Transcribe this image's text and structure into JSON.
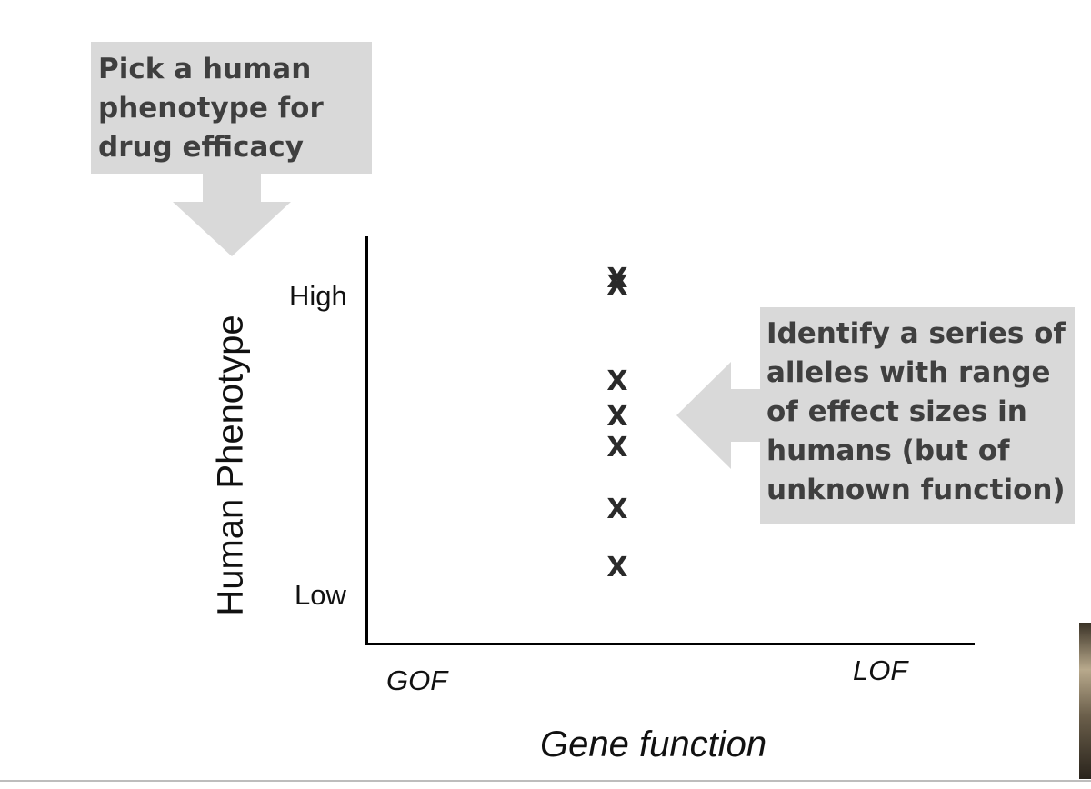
{
  "callouts": {
    "top_lines": [
      "Pick a human",
      "phenotype for",
      "drug efficacy"
    ],
    "right_lines": [
      "Identify a series of",
      "alleles with range",
      "of effect sizes in",
      "humans (but of",
      "unknown function)"
    ]
  },
  "axes": {
    "y_title": "Human Phenotype",
    "x_title": "Gene function",
    "y_high": "High",
    "y_low": "Low",
    "x_left": "GOF",
    "x_right": "LOF"
  },
  "marker_symbol": "X",
  "colors": {
    "callout_fill": "#d9d9d9",
    "callout_text": "#3f3f3f",
    "arrow_fill": "#d9d9d9",
    "axis": "#000000"
  }
}
